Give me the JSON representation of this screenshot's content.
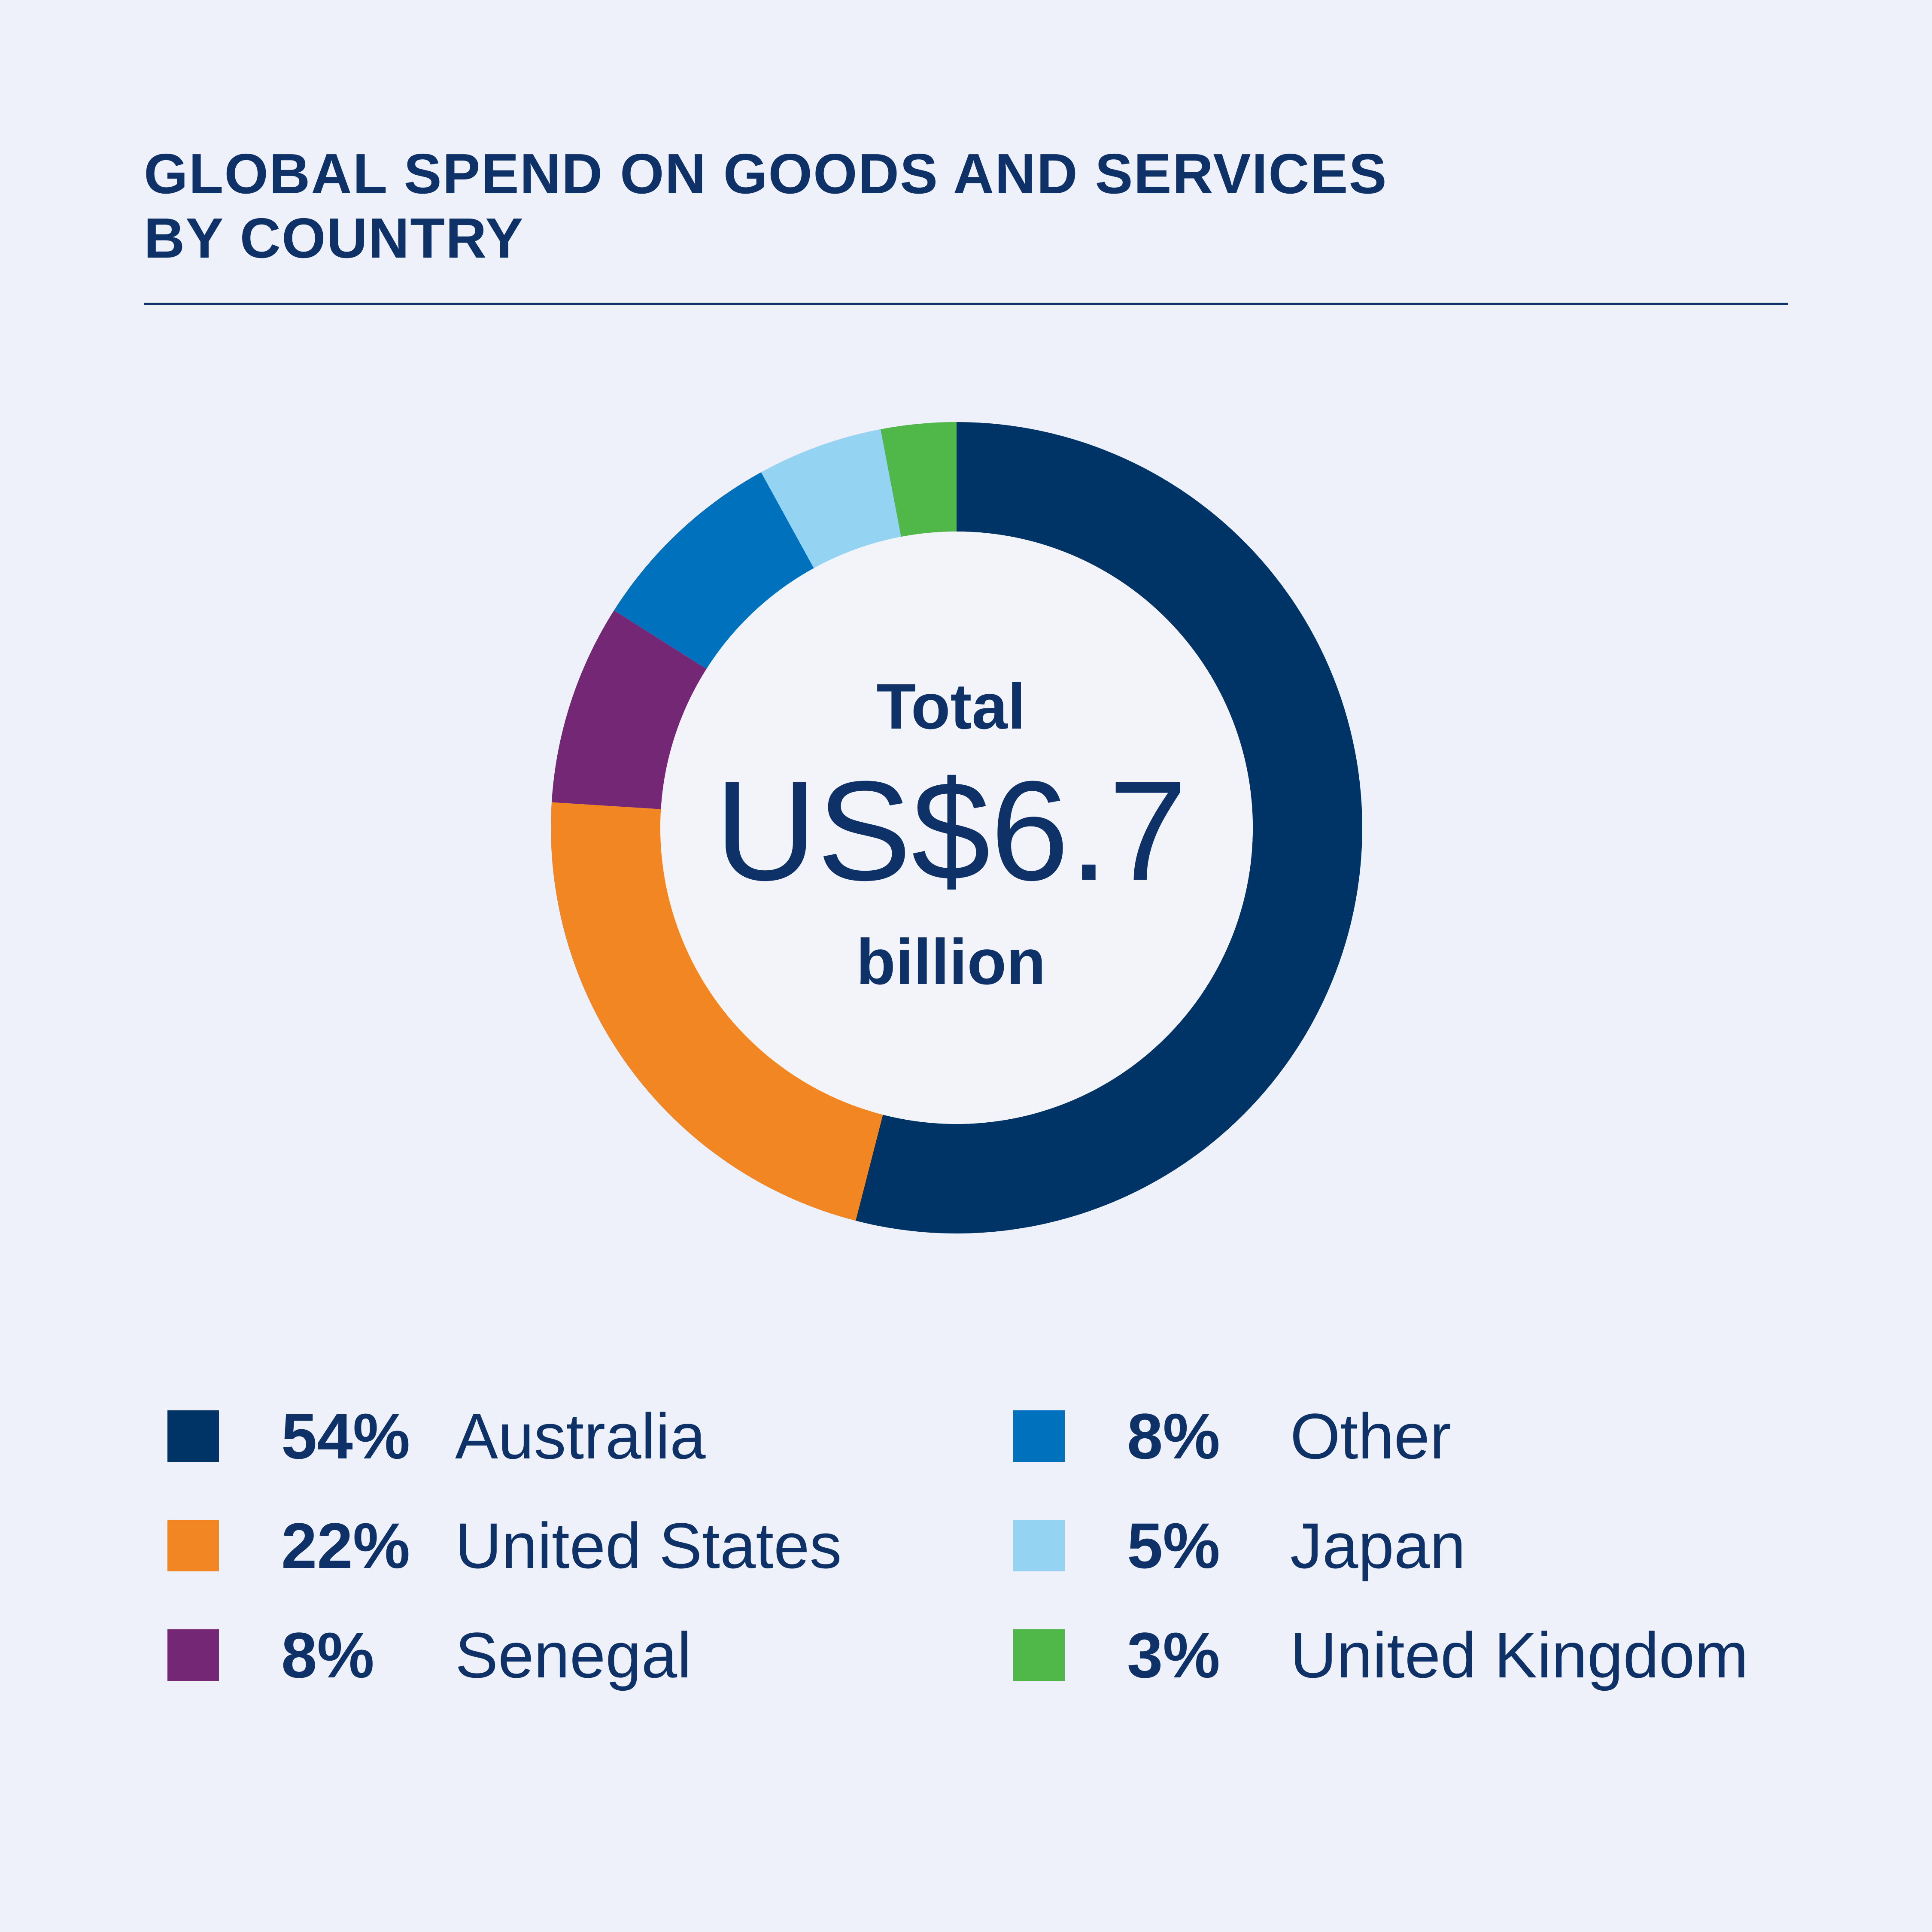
{
  "chart_data": {
    "type": "pie",
    "title_lines": [
      "GLOBAL SPEND ON GOODS AND SERVICES",
      "BY COUNTRY"
    ],
    "center": {
      "label": "Total",
      "value": "US$6.7",
      "unit": "billion"
    },
    "slices": [
      {
        "label": "Australia",
        "value": 54,
        "display": "54%",
        "color": "#003366"
      },
      {
        "label": "United States",
        "value": 22,
        "display": "22%",
        "color": "#f28622"
      },
      {
        "label": "Senegal",
        "value": 8,
        "display": "8%",
        "color": "#742774"
      },
      {
        "label": "Other",
        "value": 8,
        "display": "8%",
        "color": "#0071bc"
      },
      {
        "label": "Japan",
        "value": 5,
        "display": "5%",
        "color": "#94d3f2"
      },
      {
        "label": "United Kingdom",
        "value": 3,
        "display": "3%",
        "color": "#50b848"
      }
    ],
    "donut": true,
    "legend_position": "bottom"
  }
}
